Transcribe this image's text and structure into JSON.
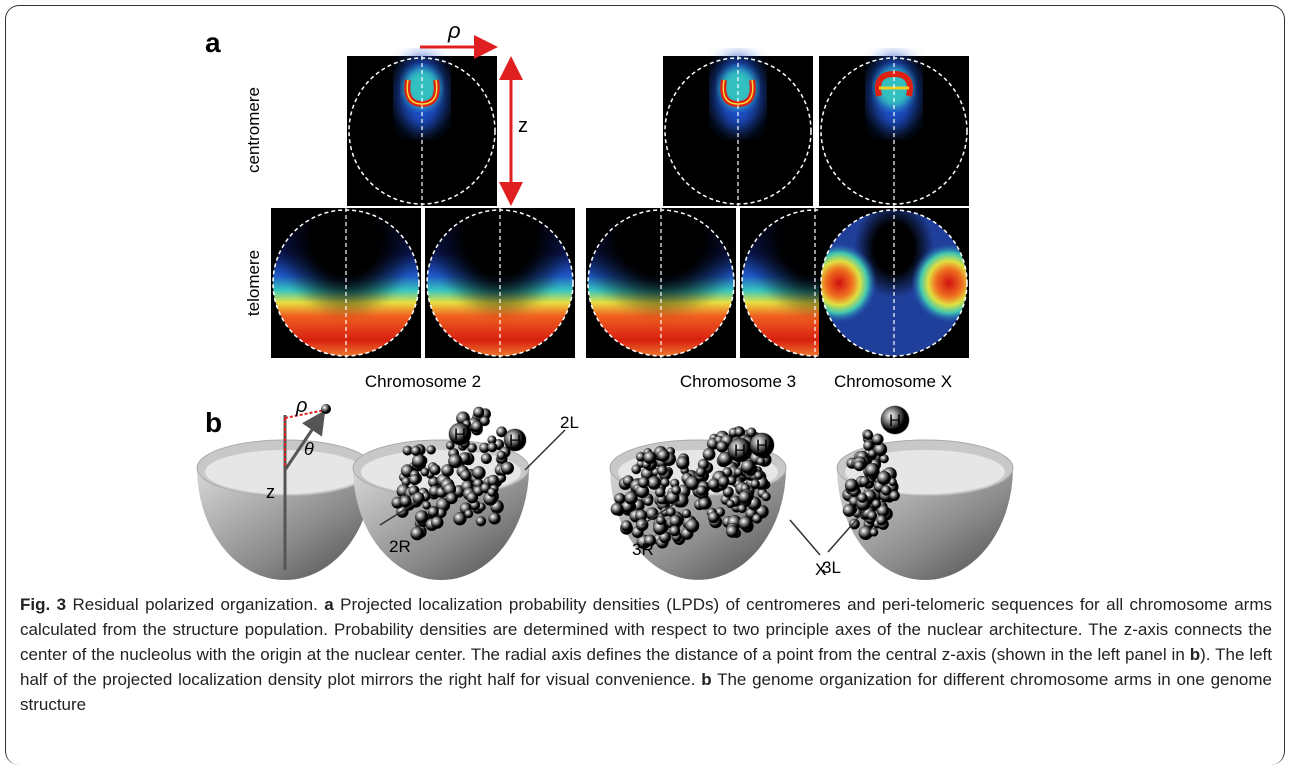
{
  "panel_a": {
    "label": "a",
    "rho": "ρ",
    "z": "z",
    "row_labels": [
      "centromere",
      "telomere"
    ],
    "column_labels": [
      "Chromosome 2",
      "Chromosome 3",
      "Chromosome X"
    ]
  },
  "panel_b": {
    "label": "b",
    "rho": "ρ",
    "theta": "θ",
    "z": "z",
    "h_labels": [
      "H",
      "H",
      "H",
      "H",
      "H"
    ],
    "arm_labels": [
      "2R",
      "2L",
      "3R",
      "3L",
      "X"
    ]
  },
  "caption": {
    "fig_label": "Fig. 3",
    "title": "Residual polarized organization.",
    "part_a_label": "a",
    "part_a_text": "Projected localization probability densities (LPDs) of centromeres and peri-telomeric sequences for all chromosome arms calculated from the structure population. Probability densities are determined with respect to two principle axes of the nuclear architecture. The z-axis connects the center of the nucleolus with the origin at the nuclear center. The radial axis defines the distance of a point from the central z-axis (shown in the left panel in",
    "part_a_ref": "b",
    "part_a_tail": "). The left half of the projected localization density plot mirrors the right half for visual convenience.",
    "part_b_label": "b",
    "part_b_text": "The genome organization for different chromosome arms in one genome structure"
  }
}
